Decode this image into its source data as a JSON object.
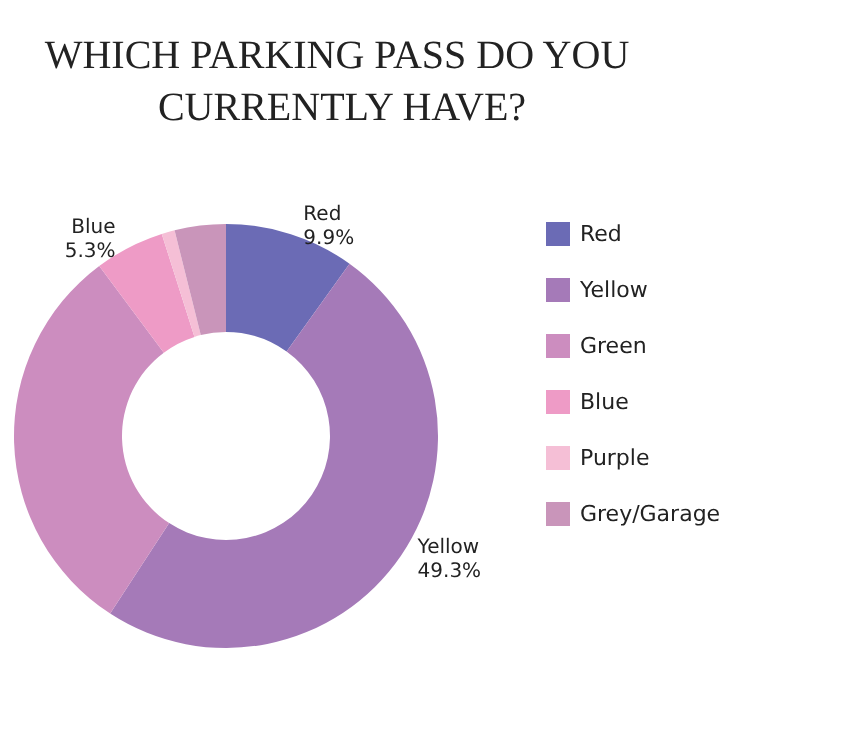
{
  "chart_data": {
    "type": "donut",
    "title": "WHICH PARKING PASS DO YOU CURRENTLY HAVE?",
    "categories": [
      "Red",
      "Yellow",
      "Green",
      "Blue",
      "Purple",
      "Grey/Garage"
    ],
    "values": [
      9.9,
      49.3,
      30.6,
      5.3,
      1.0,
      3.9
    ],
    "value_labels": [
      "9.9%",
      "49.3%",
      null,
      "5.3%",
      null,
      null
    ],
    "colors": [
      "#6b6bb5",
      "#a57ab8",
      "#cc8dbf",
      "#ee9bc6",
      "#f5bfd6",
      "#c995ba"
    ],
    "legend": "right"
  }
}
